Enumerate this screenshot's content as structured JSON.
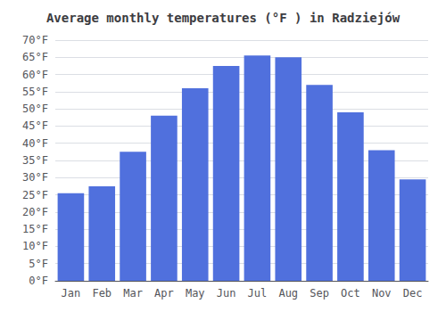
{
  "chart_data": {
    "type": "bar",
    "title": "Average monthly temperatures (°F ) in Radziejów",
    "categories": [
      "Jan",
      "Feb",
      "Mar",
      "Apr",
      "May",
      "Jun",
      "Jul",
      "Aug",
      "Sep",
      "Oct",
      "Nov",
      "Dec"
    ],
    "values": [
      25.5,
      27.5,
      37.5,
      48,
      56,
      62.5,
      65.5,
      65,
      57,
      49,
      38,
      29.5
    ],
    "ylim": [
      0,
      70
    ],
    "yticks": [
      {
        "value": 0,
        "label": "0°F"
      },
      {
        "value": 5,
        "label": "5°F"
      },
      {
        "value": 10,
        "label": "10°F"
      },
      {
        "value": 15,
        "label": "15°F"
      },
      {
        "value": 20,
        "label": "20°F"
      },
      {
        "value": 25,
        "label": "25°F"
      },
      {
        "value": 30,
        "label": "30°F"
      },
      {
        "value": 35,
        "label": "35°F"
      },
      {
        "value": 40,
        "label": "40°F"
      },
      {
        "value": 45,
        "label": "45°F"
      },
      {
        "value": 50,
        "label": "50°F"
      },
      {
        "value": 55,
        "label": "55°F"
      },
      {
        "value": 60,
        "label": "60°F"
      },
      {
        "value": 65,
        "label": "65°F"
      },
      {
        "value": 70,
        "label": "70°F"
      }
    ],
    "grid": true
  }
}
